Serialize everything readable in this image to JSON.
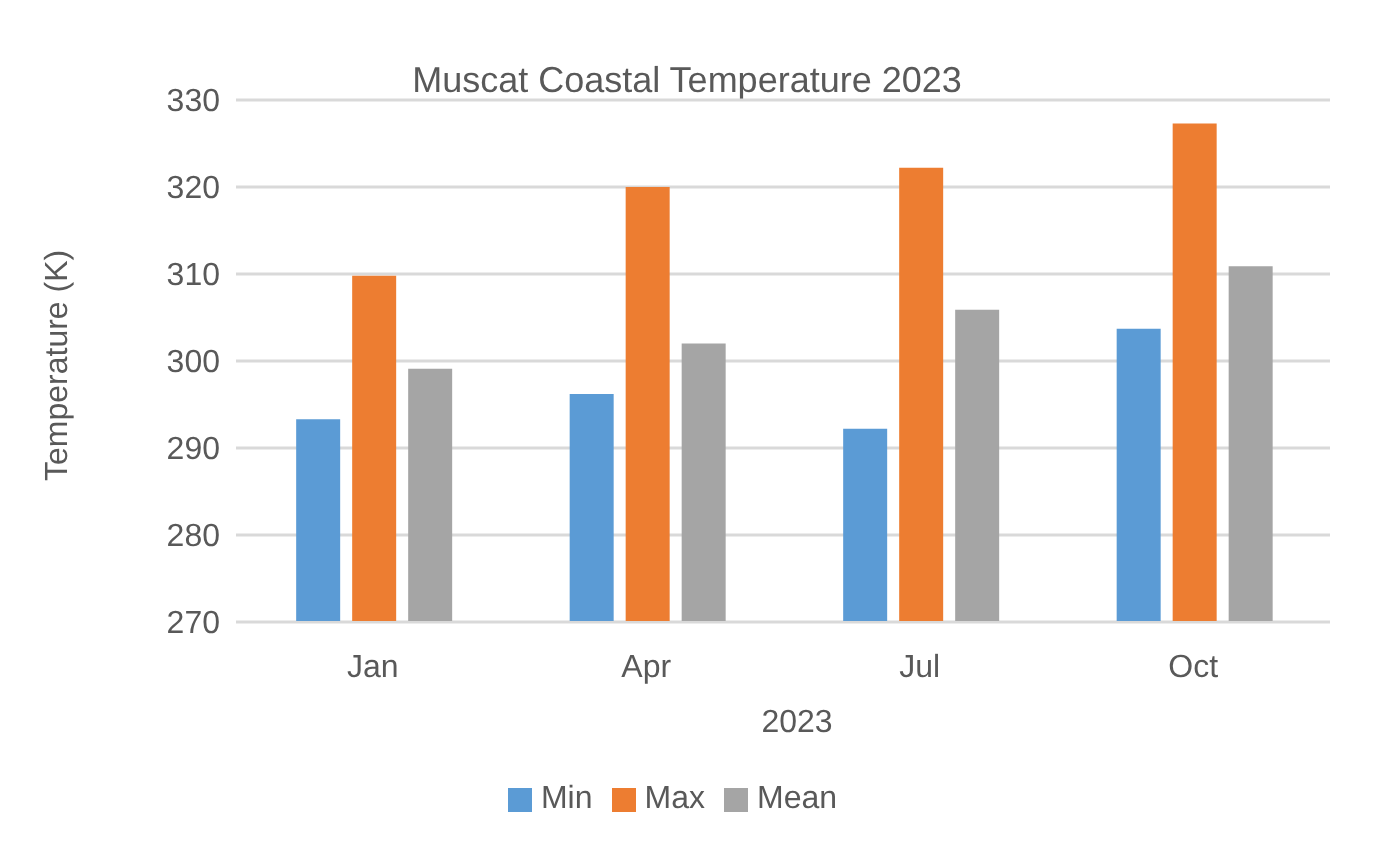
{
  "chart_data": {
    "type": "bar",
    "title": "Muscat Coastal Temperature 2023",
    "xlabel": "2023",
    "ylabel": "Temperature (K)",
    "categories": [
      "Jan",
      "Apr",
      "Jul",
      "Oct"
    ],
    "series": [
      {
        "name": "Min",
        "color": "#5b9bd5",
        "values": [
          293.3,
          296.2,
          292.2,
          303.7
        ]
      },
      {
        "name": "Max",
        "color": "#ed7d31",
        "values": [
          309.8,
          320.0,
          322.2,
          327.3
        ]
      },
      {
        "name": "Mean",
        "color": "#a5a5a5",
        "values": [
          299.1,
          302.0,
          305.9,
          310.9
        ]
      }
    ],
    "ylim": [
      270,
      330
    ],
    "yticks": [
      270,
      280,
      290,
      300,
      310,
      320,
      330
    ],
    "grid": "y",
    "legend": "bottom"
  }
}
